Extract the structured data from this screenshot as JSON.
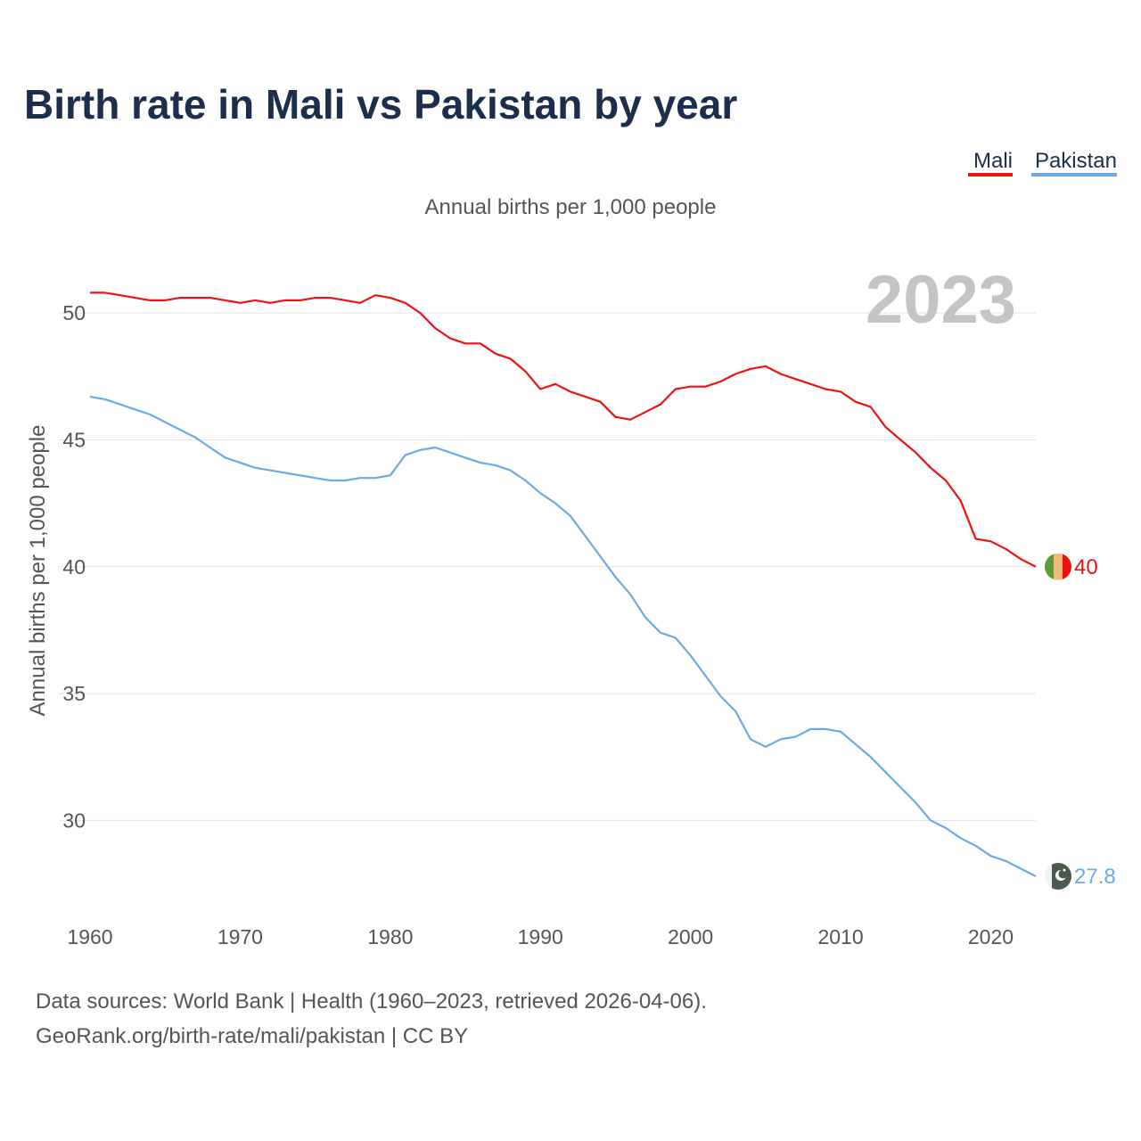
{
  "title": "Birth rate in Mali vs Pakistan by year",
  "subtitle": "Annual births per 1,000 people",
  "year_label": "2023",
  "source_line1": "Data sources: World Bank | Health (1960–2023, retrieved 2026-04-06).",
  "source_line2": "GeoRank.org/birth-rate/mali/pakistan | CC BY",
  "colors": {
    "mali": "#ee1111",
    "pakistan": "#6aaae6",
    "title": "#1b2e4b"
  },
  "chart_data": {
    "type": "line",
    "title": "Birth rate in Mali vs Pakistan by year",
    "xlabel": "",
    "ylabel": "Annual births per 1,000 people",
    "xlim": [
      1960,
      2023
    ],
    "ylim": [
      26.5,
      52.5
    ],
    "xticks": [
      1960,
      1970,
      1980,
      1990,
      2000,
      2010,
      2020
    ],
    "yticks": [
      30,
      35,
      40,
      45,
      50
    ],
    "grid": true,
    "legend": "top-right",
    "x": [
      1960,
      1961,
      1962,
      1963,
      1964,
      1965,
      1966,
      1967,
      1968,
      1969,
      1970,
      1971,
      1972,
      1973,
      1974,
      1975,
      1976,
      1977,
      1978,
      1979,
      1980,
      1981,
      1982,
      1983,
      1984,
      1985,
      1986,
      1987,
      1988,
      1989,
      1990,
      1991,
      1992,
      1993,
      1994,
      1995,
      1996,
      1997,
      1998,
      1999,
      2000,
      2001,
      2002,
      2003,
      2004,
      2005,
      2006,
      2007,
      2008,
      2009,
      2010,
      2011,
      2012,
      2013,
      2014,
      2015,
      2016,
      2017,
      2018,
      2019,
      2020,
      2021,
      2022,
      2023
    ],
    "series": [
      {
        "name": "Mali",
        "color": "#ee1111",
        "end_label": "40",
        "flag": "mali-flag-icon",
        "values": [
          50.8,
          50.8,
          50.7,
          50.6,
          50.5,
          50.5,
          50.6,
          50.6,
          50.6,
          50.5,
          50.4,
          50.5,
          50.4,
          50.5,
          50.5,
          50.6,
          50.6,
          50.5,
          50.4,
          50.7,
          50.6,
          50.4,
          50.0,
          49.4,
          49.0,
          48.8,
          48.8,
          48.4,
          48.2,
          47.7,
          47.0,
          47.2,
          46.9,
          46.7,
          46.5,
          45.9,
          45.8,
          46.1,
          46.4,
          47.0,
          47.1,
          47.1,
          47.3,
          47.6,
          47.8,
          47.9,
          47.6,
          47.4,
          47.2,
          47.0,
          46.9,
          46.5,
          46.3,
          45.5,
          45.0,
          44.5,
          43.9,
          43.4,
          42.6,
          41.1,
          41.0,
          40.7,
          40.3,
          40.0
        ]
      },
      {
        "name": "Pakistan",
        "color": "#6aaae6",
        "end_label": "27.8",
        "flag": "pakistan-flag-icon",
        "values": [
          46.7,
          46.6,
          46.4,
          46.2,
          46.0,
          45.7,
          45.4,
          45.1,
          44.7,
          44.3,
          44.1,
          43.9,
          43.8,
          43.7,
          43.6,
          43.5,
          43.4,
          43.4,
          43.5,
          43.5,
          43.6,
          44.4,
          44.6,
          44.7,
          44.5,
          44.3,
          44.1,
          44.0,
          43.8,
          43.4,
          42.9,
          42.5,
          42.0,
          41.2,
          40.4,
          39.6,
          38.9,
          38.0,
          37.4,
          37.2,
          36.5,
          35.7,
          34.9,
          34.3,
          33.2,
          32.9,
          33.2,
          33.3,
          33.6,
          33.6,
          33.5,
          33.0,
          32.5,
          31.9,
          31.3,
          30.7,
          30.0,
          29.7,
          29.3,
          29.0,
          28.6,
          28.4,
          28.1,
          27.8
        ]
      }
    ]
  }
}
